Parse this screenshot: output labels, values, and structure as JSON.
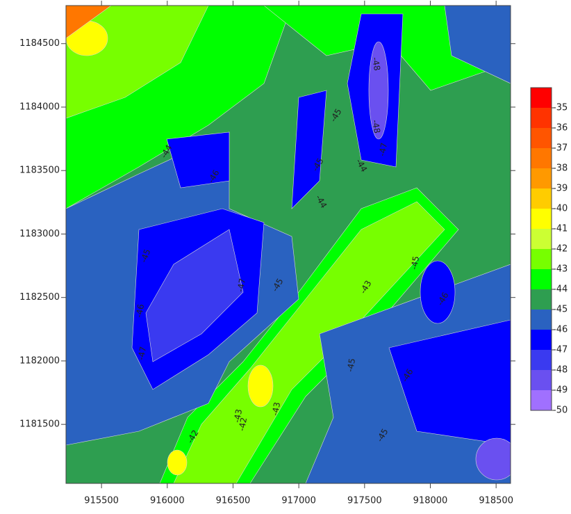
{
  "chart_data": {
    "type": "contour",
    "xlim": [
      915230,
      918610
    ],
    "ylim": [
      1181035,
      1184800
    ],
    "xticks": [
      915500,
      916000,
      916500,
      917000,
      917500,
      918000,
      918500
    ],
    "yticks": [
      1181500,
      1182000,
      1182500,
      1183000,
      1183500,
      1184000,
      1184500
    ],
    "colorbar": {
      "levels": [
        -35,
        -36,
        -37,
        -38,
        -39,
        -40,
        -41,
        -42,
        -43,
        -44,
        -45,
        -46,
        -47,
        -48,
        -49,
        -50
      ],
      "colors": [
        "#ff0000",
        "#ff3300",
        "#ff5500",
        "#ff7700",
        "#ff9900",
        "#ffcc00",
        "#ffff00",
        "#ccff33",
        "#77ff00",
        "#00ff00",
        "#2e9e50",
        "#2a62c0",
        "#0000ff",
        "#3a3af0",
        "#6a50f0",
        "#a070ff"
      ]
    },
    "contour_labels": [
      -44,
      -46,
      -45,
      -45,
      -44,
      -44,
      -48,
      -48,
      -47,
      -45,
      -47,
      -45,
      -43,
      -45,
      -46,
      -46,
      -47,
      -45,
      -46,
      -42,
      -42,
      -43,
      -43,
      -45
    ]
  }
}
